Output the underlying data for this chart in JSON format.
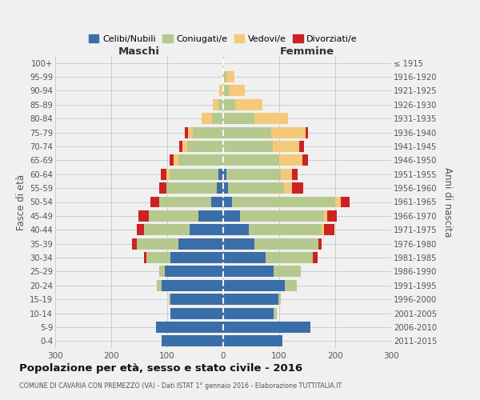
{
  "age_groups": [
    "0-4",
    "5-9",
    "10-14",
    "15-19",
    "20-24",
    "25-29",
    "30-34",
    "35-39",
    "40-44",
    "45-49",
    "50-54",
    "55-59",
    "60-64",
    "65-69",
    "70-74",
    "75-79",
    "80-84",
    "85-89",
    "90-94",
    "95-99",
    "100+"
  ],
  "birth_years": [
    "2011-2015",
    "2006-2010",
    "2001-2005",
    "1996-2000",
    "1991-1995",
    "1986-1990",
    "1981-1985",
    "1976-1980",
    "1971-1975",
    "1966-1970",
    "1961-1965",
    "1956-1960",
    "1951-1955",
    "1946-1950",
    "1941-1945",
    "1936-1940",
    "1931-1935",
    "1926-1930",
    "1921-1925",
    "1916-1920",
    "≤ 1915"
  ],
  "maschi": {
    "celibi": [
      110,
      120,
      95,
      95,
      110,
      105,
      95,
      80,
      60,
      45,
      22,
      12,
      8,
      0,
      0,
      0,
      0,
      0,
      0,
      0,
      0
    ],
    "coniugati": [
      0,
      0,
      0,
      2,
      8,
      10,
      42,
      75,
      82,
      88,
      92,
      90,
      88,
      80,
      65,
      55,
      20,
      8,
      2,
      0,
      0
    ],
    "vedovi": [
      0,
      0,
      0,
      0,
      0,
      0,
      0,
      0,
      0,
      0,
      0,
      0,
      5,
      8,
      8,
      8,
      18,
      10,
      5,
      2,
      0
    ],
    "divorziati": [
      0,
      0,
      0,
      0,
      0,
      0,
      5,
      8,
      12,
      18,
      16,
      12,
      10,
      8,
      5,
      5,
      0,
      0,
      0,
      0,
      0
    ]
  },
  "femmine": {
    "nubili": [
      105,
      155,
      90,
      98,
      110,
      90,
      75,
      55,
      45,
      30,
      15,
      8,
      5,
      0,
      0,
      0,
      0,
      0,
      0,
      0,
      0
    ],
    "coniugate": [
      0,
      0,
      5,
      5,
      22,
      48,
      85,
      115,
      130,
      150,
      185,
      100,
      98,
      100,
      88,
      85,
      55,
      22,
      10,
      5,
      0
    ],
    "vedove": [
      0,
      0,
      0,
      0,
      0,
      0,
      0,
      0,
      5,
      5,
      10,
      15,
      20,
      42,
      48,
      62,
      60,
      48,
      28,
      15,
      2
    ],
    "divorziate": [
      0,
      0,
      0,
      0,
      0,
      0,
      8,
      5,
      18,
      18,
      16,
      20,
      10,
      10,
      8,
      5,
      0,
      0,
      0,
      0,
      0
    ]
  },
  "colors": {
    "celibi_nubili": "#3a6ea8",
    "coniugati": "#b5c98e",
    "vedovi": "#f5c97a",
    "divorziati": "#cc2222"
  },
  "xlim": 300,
  "title": "Popolazione per età, sesso e stato civile - 2016",
  "subtitle": "COMUNE DI CAVARIA CON PREMEZZO (VA) - Dati ISTAT 1° gennaio 2016 - Elaborazione TUTTITALIA.IT",
  "ylabel_left": "Fasce di età",
  "ylabel_right": "Anni di nascita",
  "legend_labels": [
    "Celibi/Nubili",
    "Coniugati/e",
    "Vedovi/e",
    "Divorziati/e"
  ],
  "background_color": "#f0f0f0",
  "grid_color": "#cccccc"
}
